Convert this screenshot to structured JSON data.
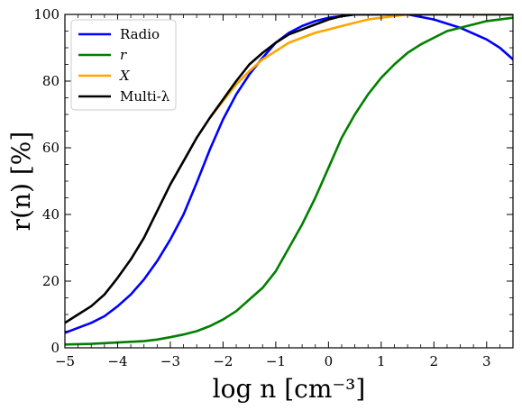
{
  "chart_data": {
    "type": "line",
    "xlabel": "log n [cm⁻³]",
    "ylabel": "r(n) [%]",
    "xlim": [
      -5,
      3.5
    ],
    "ylim": [
      0,
      100
    ],
    "xticks": [
      -5,
      -4,
      -3,
      -2,
      -1,
      0,
      1,
      2,
      3
    ],
    "yticks": [
      0,
      20,
      40,
      60,
      80,
      100
    ],
    "xtick_labels": [
      "−5",
      "−4",
      "−3",
      "−2",
      "−1",
      "0",
      "1",
      "2",
      "3"
    ],
    "ytick_labels": [
      "0",
      "20",
      "40",
      "60",
      "80",
      "100"
    ],
    "grid": false,
    "legend_position": "top-left",
    "series": [
      {
        "name": "Radio",
        "color": "#0000ff",
        "x": [
          -5,
          -4.75,
          -4.5,
          -4.25,
          -4,
          -3.75,
          -3.5,
          -3.25,
          -3,
          -2.75,
          -2.5,
          -2.25,
          -2,
          -1.75,
          -1.5,
          -1.25,
          -1,
          -0.75,
          -0.5,
          -0.25,
          0,
          0.25,
          0.5,
          1,
          1.5,
          2,
          2.5,
          3,
          3.25,
          3.5
        ],
        "y": [
          4.5,
          6,
          7.5,
          9.5,
          12.5,
          16,
          20.5,
          26,
          32.5,
          40,
          49.5,
          59.5,
          68.5,
          76,
          82,
          87,
          91.5,
          94.5,
          96.5,
          98,
          99,
          99.5,
          100,
          100,
          100,
          98.5,
          96,
          92.5,
          90,
          86.5
        ]
      },
      {
        "name": "r",
        "color": "#008000",
        "x": [
          -5,
          -4.75,
          -4.5,
          -4.25,
          -4,
          -3.75,
          -3.5,
          -3.25,
          -3,
          -2.75,
          -2.5,
          -2.25,
          -2,
          -1.75,
          -1.5,
          -1.25,
          -1,
          -0.75,
          -0.5,
          -0.25,
          0,
          0.25,
          0.5,
          0.75,
          1,
          1.25,
          1.5,
          1.75,
          2,
          2.25,
          2.5,
          2.75,
          3,
          3.25,
          3.5
        ],
        "y": [
          1,
          1.1,
          1.2,
          1.4,
          1.6,
          1.8,
          2,
          2.5,
          3.2,
          4,
          5,
          6.5,
          8.5,
          11,
          14.5,
          18,
          23,
          30,
          37,
          45,
          54,
          63,
          70,
          76,
          81,
          85,
          88.5,
          91,
          93,
          95,
          96,
          97,
          98,
          98.5,
          99
        ]
      },
      {
        "name": "X",
        "color": "#ffa500",
        "x": [
          -2.25,
          -2,
          -1.75,
          -1.5,
          -1.25,
          -1,
          -0.75,
          -0.5,
          -0.25,
          0,
          0.25,
          0.5,
          0.75,
          1,
          1.25,
          1.5,
          2,
          2.5,
          3,
          3.5
        ],
        "y": [
          69,
          74,
          79,
          83,
          86.5,
          89,
          91.5,
          93,
          94.5,
          95.5,
          96.5,
          97.5,
          98.5,
          99,
          99.5,
          100,
          100,
          100,
          100,
          100
        ]
      },
      {
        "name": "Multi-λ",
        "color": "#000000",
        "x": [
          -5,
          -4.75,
          -4.5,
          -4.25,
          -4,
          -3.75,
          -3.5,
          -3.25,
          -3,
          -2.75,
          -2.5,
          -2.25,
          -2,
          -1.75,
          -1.5,
          -1.25,
          -1,
          -0.75,
          -0.5,
          -0.25,
          0,
          0.25,
          0.5,
          0.75,
          1,
          1.5,
          2,
          2.5,
          3,
          3.5
        ],
        "y": [
          7.5,
          10,
          12.5,
          16,
          21,
          26.5,
          33,
          41,
          49,
          56,
          63,
          69,
          74.5,
          80,
          85,
          88.5,
          91.5,
          94,
          95.5,
          97,
          98.5,
          99.5,
          100,
          100,
          100,
          100,
          100,
          100,
          100,
          100
        ]
      }
    ]
  }
}
